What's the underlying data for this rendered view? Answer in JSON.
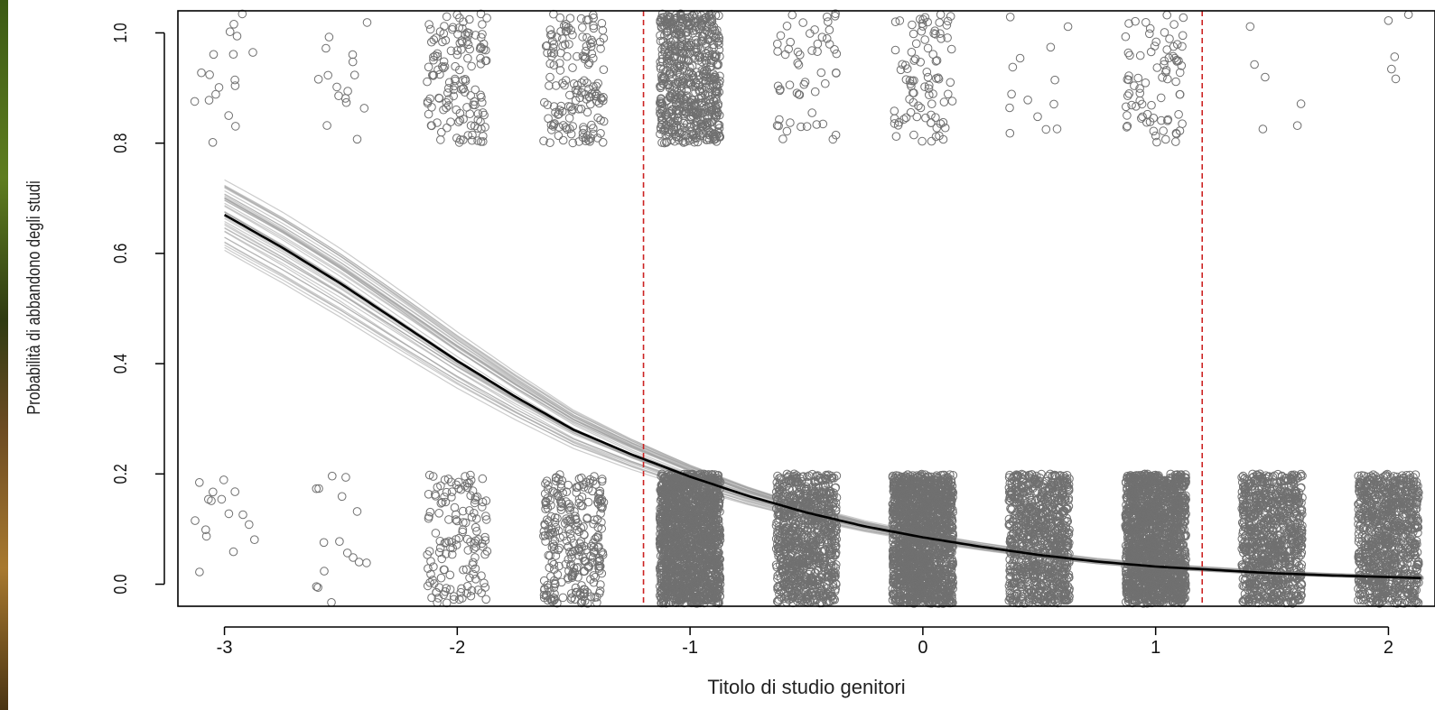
{
  "chart_data": {
    "type": "scatter",
    "xlabel": "Titolo di studio genitori",
    "ylabel": "Probabilità di abbandono degli studi",
    "xlim": [
      -3.2,
      2.2
    ],
    "ylim": [
      -0.04,
      1.04
    ],
    "x_ticks": [
      -3,
      -2,
      -1,
      0,
      1,
      2
    ],
    "x_tick_labels": [
      "-3",
      "-2",
      "-1",
      "0",
      "1",
      "2"
    ],
    "y_ticks": [
      0.0,
      0.2,
      0.4,
      0.6,
      0.8,
      1.0
    ],
    "y_tick_labels": [
      "0.0",
      "0.2",
      "0.4",
      "0.6",
      "0.8",
      "1.0"
    ],
    "grid": false,
    "fitted_curve": {
      "x": [
        -3.0,
        -2.75,
        -2.5,
        -2.25,
        -2.0,
        -1.75,
        -1.5,
        -1.25,
        -1.0,
        -0.75,
        -0.5,
        -0.25,
        0.0,
        0.25,
        0.5,
        0.75,
        1.0,
        1.25,
        1.5,
        1.75,
        2.0,
        2.15
      ],
      "y": [
        0.67,
        0.61,
        0.545,
        0.475,
        0.405,
        0.34,
        0.28,
        0.235,
        0.195,
        0.16,
        0.13,
        0.105,
        0.085,
        0.068,
        0.053,
        0.041,
        0.032,
        0.026,
        0.02,
        0.016,
        0.013,
        0.011
      ],
      "color": "#000000"
    },
    "uncertainty_band_color": "#a0a0a0",
    "reference_lines": [
      {
        "x": -1.2,
        "color": "#cc2222",
        "style": "dashed"
      },
      {
        "x": 1.2,
        "color": "#cc2222",
        "style": "dashed"
      }
    ],
    "jittered_points": {
      "marker": "open-circle",
      "color": "#707070",
      "groups": [
        {
          "x": -3.0,
          "n_top": 18,
          "n_bottom": 16
        },
        {
          "x": -2.5,
          "n_top": 16,
          "n_bottom": 16
        },
        {
          "x": -2.0,
          "n_top": 140,
          "n_bottom": 140
        },
        {
          "x": -1.5,
          "n_top": 160,
          "n_bottom": 280
        },
        {
          "x": -1.0,
          "n_top": 650,
          "n_bottom": 1700
        },
        {
          "x": -0.5,
          "n_top": 55,
          "n_bottom": 900
        },
        {
          "x": 0.0,
          "n_top": 90,
          "n_bottom": 1700
        },
        {
          "x": 0.5,
          "n_top": 14,
          "n_bottom": 900
        },
        {
          "x": 1.0,
          "n_top": 80,
          "n_bottom": 1700
        },
        {
          "x": 1.5,
          "n_top": 6,
          "n_bottom": 900
        },
        {
          "x": 2.0,
          "n_top": 5,
          "n_bottom": 900
        }
      ]
    }
  }
}
